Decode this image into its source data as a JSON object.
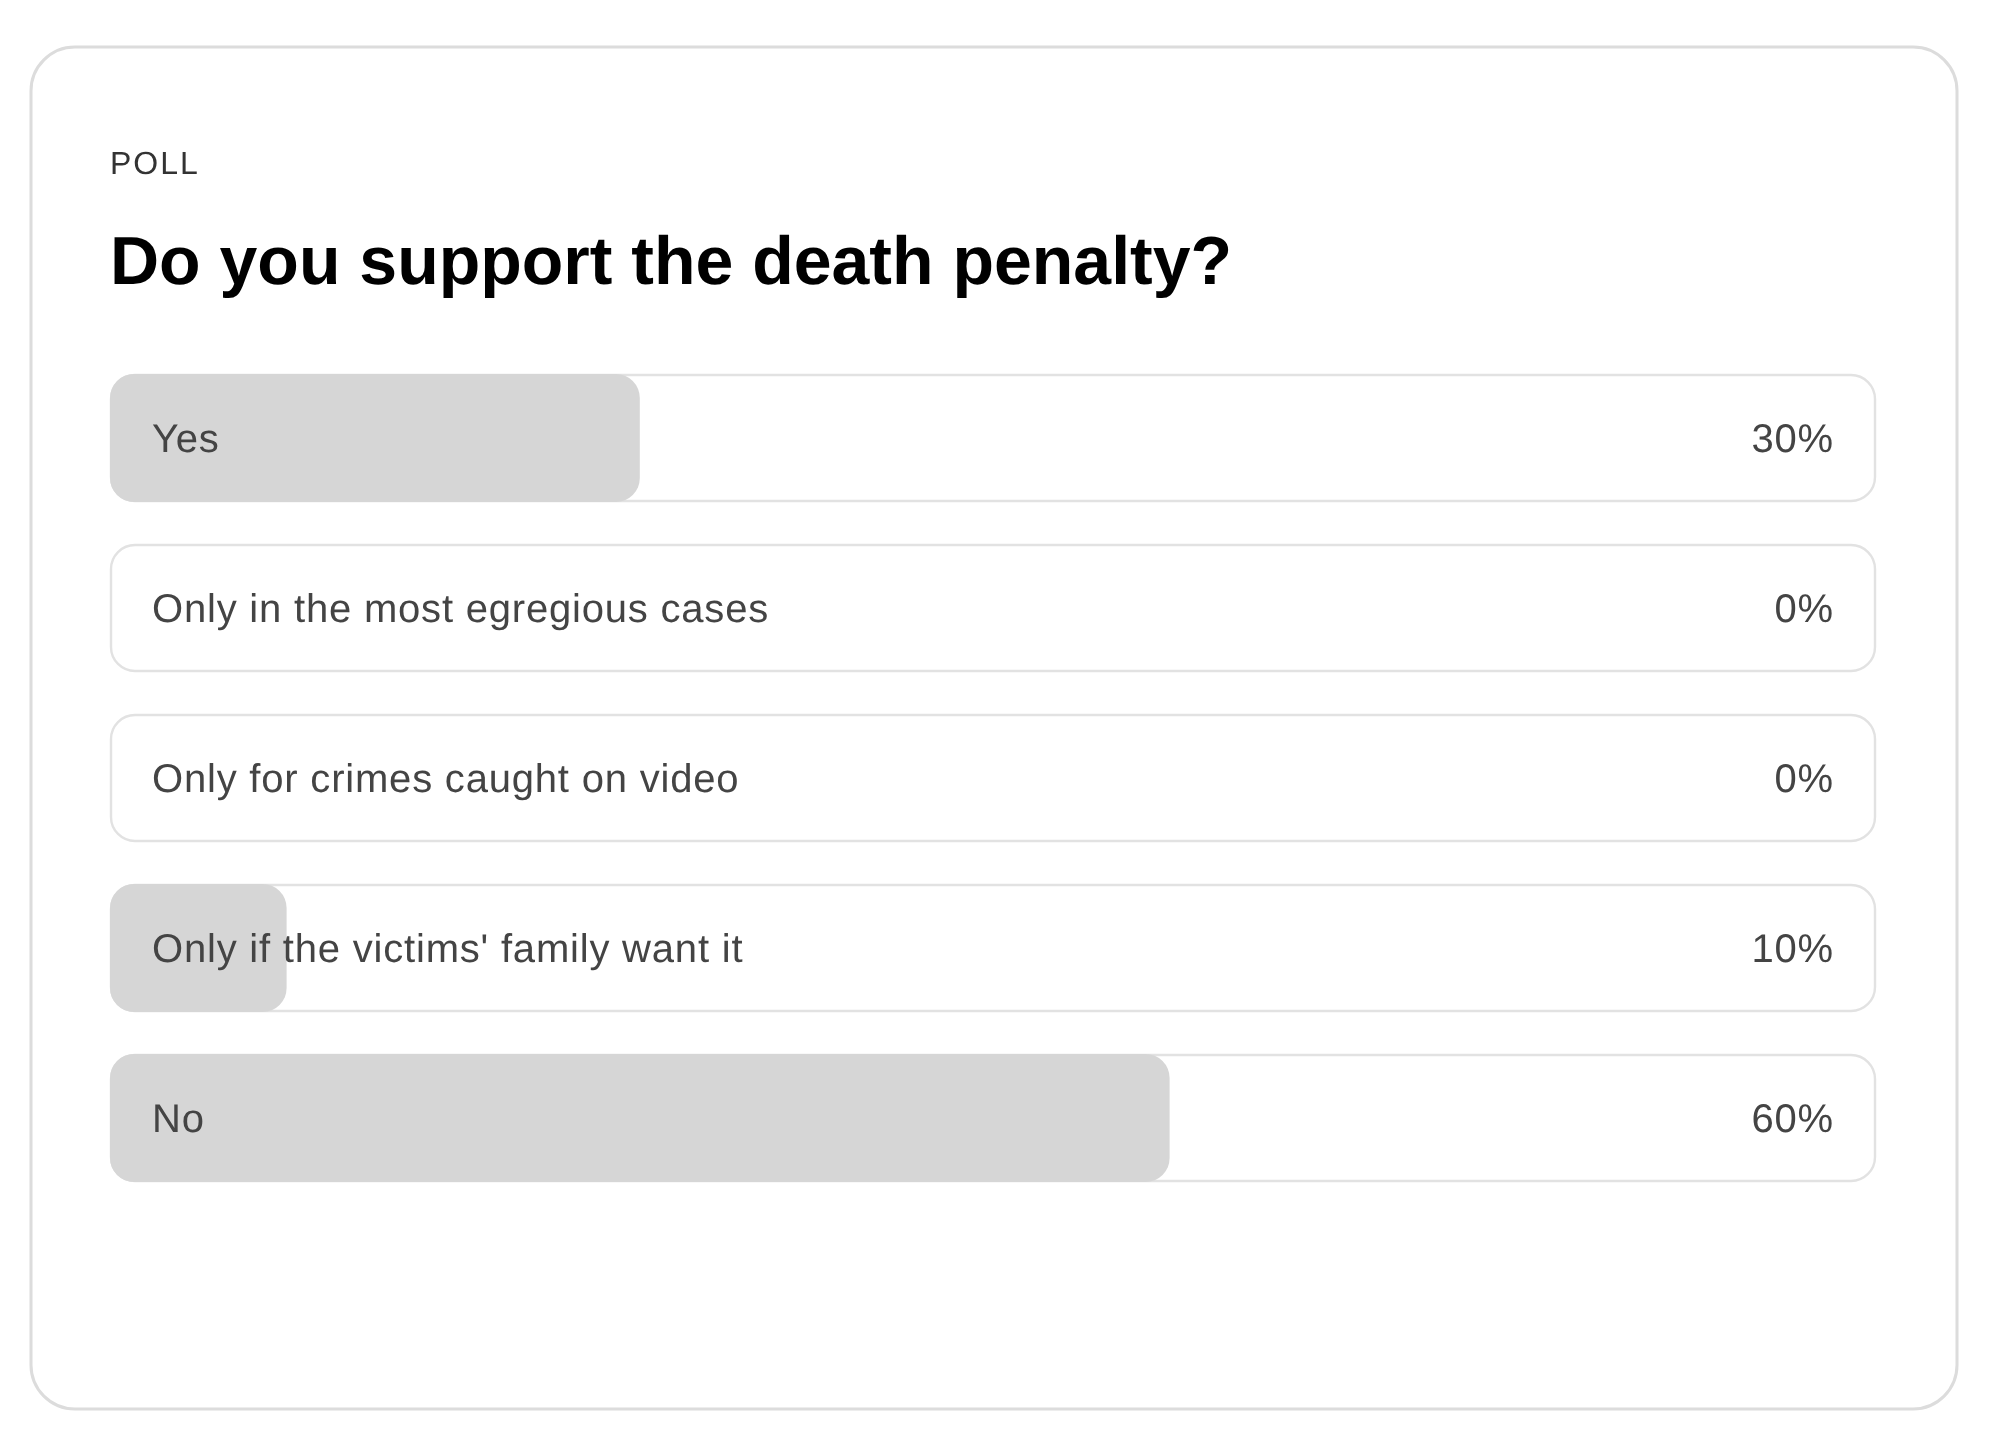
{
  "chart_data": {
    "type": "bar",
    "orientation": "horizontal",
    "title": "Do you support the death penalty?",
    "annotations": [
      "POLL"
    ],
    "categories": [
      "Yes",
      "Only in the most egregious cases",
      "Only for crimes caught on video",
      "Only if the victims' family want it",
      "No"
    ],
    "values": [
      30,
      0,
      0,
      10,
      60
    ],
    "value_labels": [
      "30%",
      "0%",
      "0%",
      "10%",
      "60%"
    ],
    "color": "#d6d6d6",
    "xlim": [
      0,
      100
    ]
  }
}
